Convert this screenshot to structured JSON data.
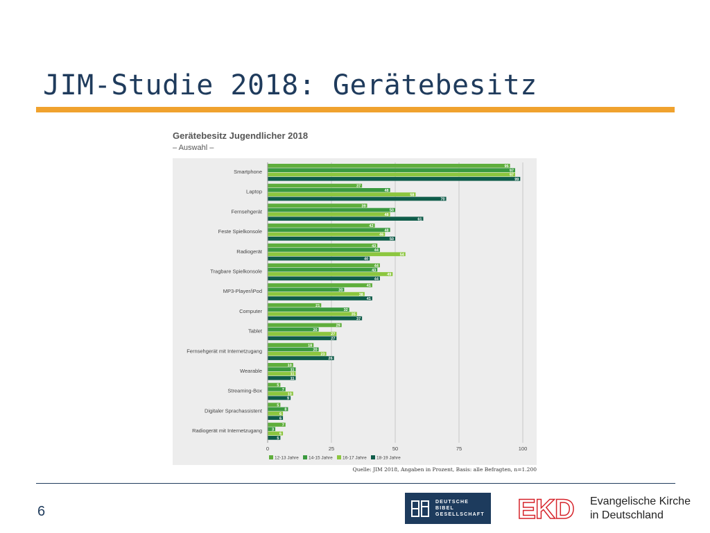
{
  "slide": {
    "title": "JIM-Studie 2018: Gerätebesitz",
    "page_number": "6",
    "source": "Quelle: JIM 2018, Angaben in Prozent, Basis: alle Befragten, n=1.200"
  },
  "logos": {
    "dbg": [
      "DEUTSCHE",
      "BIBEL",
      "GESELLSCHAFT"
    ],
    "ekd_mark": "EKD",
    "ekd_line1": "Evangelische Kirche",
    "ekd_line2": "in Deutschland"
  },
  "chart_data": {
    "type": "bar",
    "orientation": "horizontal",
    "title": "Gerätebesitz Jugendlicher 2018",
    "subtitle": "– Auswahl –",
    "xlim": [
      0,
      100
    ],
    "x_ticks": [
      0,
      25,
      50,
      75,
      100
    ],
    "grid": true,
    "legend_position": "bottom",
    "categories": [
      "Smartphone",
      "Laptop",
      "Fernsehgerät",
      "Feste Spielkonsole",
      "Radiogerät",
      "Tragbare Spielkonsole",
      "MP3-Player/iPod",
      "Computer",
      "Tablet",
      "Fernsehgerät mit Internetzugang",
      "Wearable",
      "Streaming-Box",
      "Digitaler Sprachassistent",
      "Radiogerät mit Internetzugang"
    ],
    "series": [
      {
        "name": "12-13 Jahre",
        "color": "#5fae3c",
        "values": [
          95,
          37,
          39,
          42,
          43,
          44,
          41,
          21,
          29,
          18,
          10,
          5,
          5,
          7
        ]
      },
      {
        "name": "14-15 Jahre",
        "color": "#3a9a3f",
        "values": [
          97,
          48,
          50,
          48,
          44,
          43,
          30,
          32,
          20,
          20,
          11,
          7,
          8,
          3
        ]
      },
      {
        "name": "16-17 Jahre",
        "color": "#8cc63f",
        "values": [
          97,
          58,
          48,
          46,
          54,
          49,
          38,
          35,
          27,
          23,
          11,
          10,
          6,
          6
        ]
      },
      {
        "name": "18-19 Jahre",
        "color": "#0f5c4a",
        "values": [
          99,
          70,
          61,
          50,
          40,
          44,
          41,
          37,
          27,
          26,
          11,
          9,
          6,
          5
        ]
      }
    ]
  }
}
